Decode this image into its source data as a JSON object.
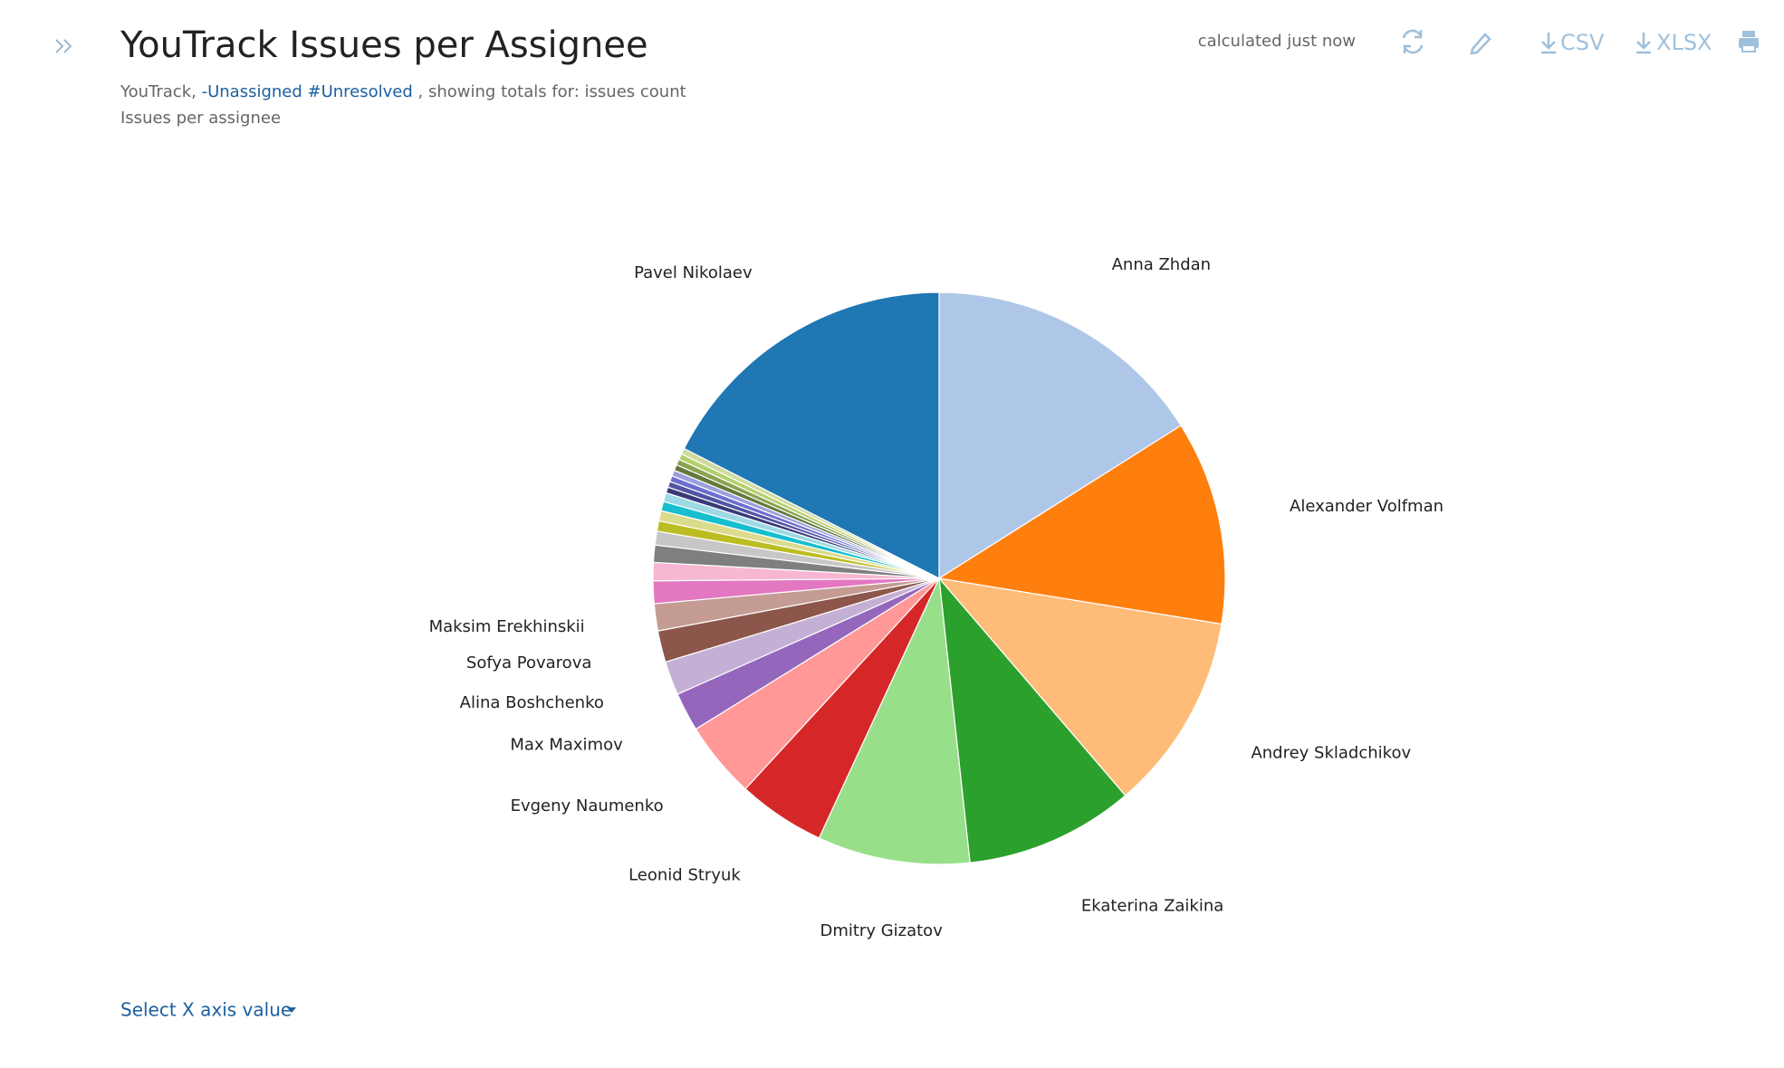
{
  "header": {
    "title": "YouTrack Issues per Assignee",
    "subtitle_prefix": "YouTrack,",
    "subtitle_query": "-Unassigned #Unresolved",
    "subtitle_suffix": ", showing totals for: issues count",
    "description": "Issues per assignee",
    "status": "calculated just now",
    "csv": "CSV",
    "xlsx": "XLSX"
  },
  "chart_data": {
    "type": "pie",
    "categories": [
      "Anna Zhdan",
      "Alexander Volfman",
      "Andrey Skladchikov",
      "Ekaterina Zaikina",
      "Dmitry Gizatov",
      "Leonid Stryuk",
      "Evgeny Naumenko",
      "Max Maximov",
      "Alina Boshchenko",
      "Sofya Povarova",
      "Maksim Erekhinskii",
      null,
      null,
      null,
      null,
      null,
      null,
      null,
      null,
      null,
      null,
      null,
      null,
      null,
      null,
      null,
      null,
      "Pavel Nikolaev"
    ],
    "values": [
      57.7,
      41.5,
      40.2,
      34.4,
      31,
      17.8,
      15.6,
      7.9,
      6.9,
      6.4,
      5.5,
      4.6,
      3.7,
      3.5,
      2.8,
      2.1,
      2.1,
      1.9,
      1.8,
      1.2,
      1.2,
      1.2,
      1.2,
      1.2,
      1.2,
      1.2,
      1.2,
      63
    ],
    "colors": [
      "#aec7e8",
      "#ff7f0e",
      "#ffbb78",
      "#2ca02c",
      "#98df8a",
      "#d62728",
      "#ff9896",
      "#9467bd",
      "#c5b0d5",
      "#8c564b",
      "#c49c94",
      "#e377c2",
      "#f7b6d2",
      "#7f7f7f",
      "#c7c7c7",
      "#bcbd22",
      "#dbdb8d",
      "#17becf",
      "#9edae5",
      "#393b79",
      "#5254a3",
      "#6b6ecf",
      "#9c9ede",
      "#637939",
      "#8ca252",
      "#b5cf6b",
      "#cedb9c",
      "#1f77b4"
    ]
  },
  "footer": {
    "select_label": "Select X axis value"
  }
}
